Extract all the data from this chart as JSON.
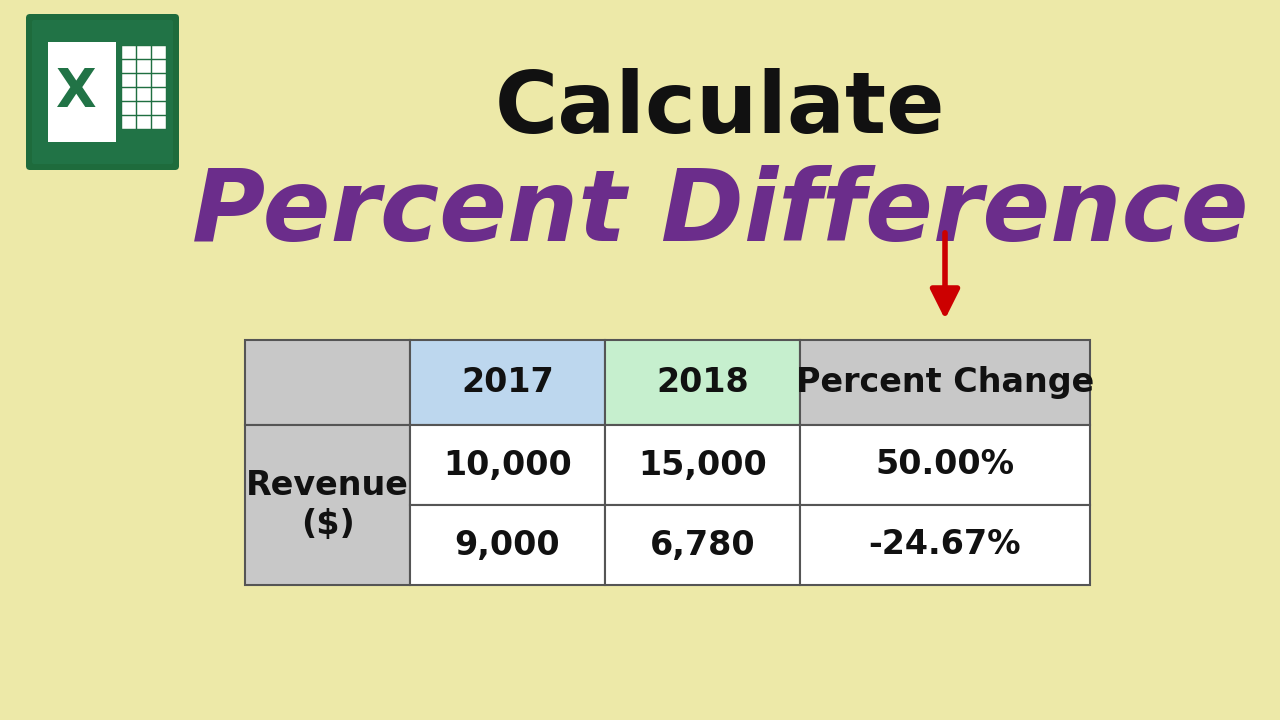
{
  "bg_color": "#EDE9A8",
  "title_text": "Calculate",
  "title_color": "#111111",
  "title_fontsize": 62,
  "subtitle_text": "Percent Difference",
  "subtitle_color": "#6B2D8B",
  "subtitle_fontsize": 72,
  "col_headers": [
    "",
    "2017",
    "2018",
    "Percent Change"
  ],
  "data_rows": [
    [
      "10,000",
      "15,000",
      "50.00%"
    ],
    [
      "9,000",
      "6,780",
      "-24.67%"
    ]
  ],
  "header_bg_label": "#C8C8C8",
  "header_bg_2017": "#BDD7EE",
  "header_bg_2018": "#C6EFCE",
  "header_bg_pct": "#C8C8C8",
  "row_label_bg": "#C8C8C8",
  "row_bg": "#FFFFFF",
  "border_color": "#555555",
  "cell_fontsize": 24,
  "header_fontsize": 24,
  "label_fontsize": 24,
  "arrow_color": "#CC0000",
  "logo_green_dark": "#1E6B3C",
  "logo_green_light": "#21A45A"
}
